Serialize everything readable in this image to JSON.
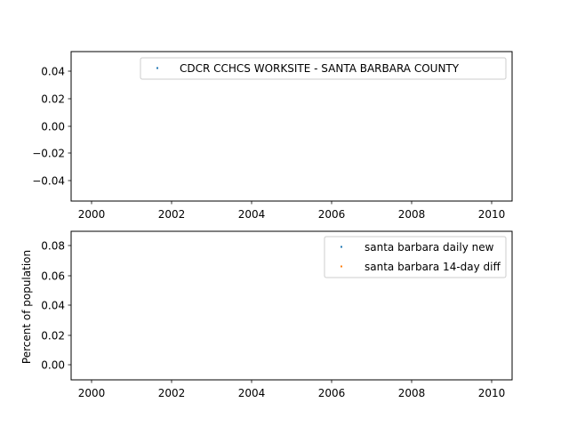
{
  "chart_data": [
    {
      "type": "scatter",
      "title": "",
      "xlabel": "",
      "ylabel": "",
      "xlim": [
        1999.5,
        2010.5
      ],
      "ylim": [
        -0.055,
        0.055
      ],
      "x_ticks": [
        "2000",
        "2002",
        "2004",
        "2006",
        "2008",
        "2010"
      ],
      "y_ticks": [
        "0.04",
        "0.02",
        "0.00",
        "−0.02",
        "−0.04"
      ],
      "legend_position": "top-right",
      "series": [
        {
          "name": "CDCR CCHCS WORKSITE - SANTA BARBARA COUNTY",
          "color": "#1f77b4",
          "x": [],
          "y": []
        }
      ]
    },
    {
      "type": "scatter",
      "title": "",
      "xlabel": "",
      "ylabel": "Percent of population",
      "xlim": [
        1999.5,
        2010.5
      ],
      "ylim": [
        -0.01,
        0.09
      ],
      "x_ticks": [
        "2000",
        "2002",
        "2004",
        "2006",
        "2008",
        "2010"
      ],
      "y_ticks": [
        "0.08",
        "0.06",
        "0.04",
        "0.02",
        "0.00"
      ],
      "legend_position": "top-right",
      "series": [
        {
          "name": "santa barbara daily new",
          "color": "#1f77b4",
          "x": [],
          "y": []
        },
        {
          "name": "santa barbara 14-day diff",
          "color": "#ff7f0e",
          "x": [],
          "y": []
        }
      ]
    }
  ]
}
